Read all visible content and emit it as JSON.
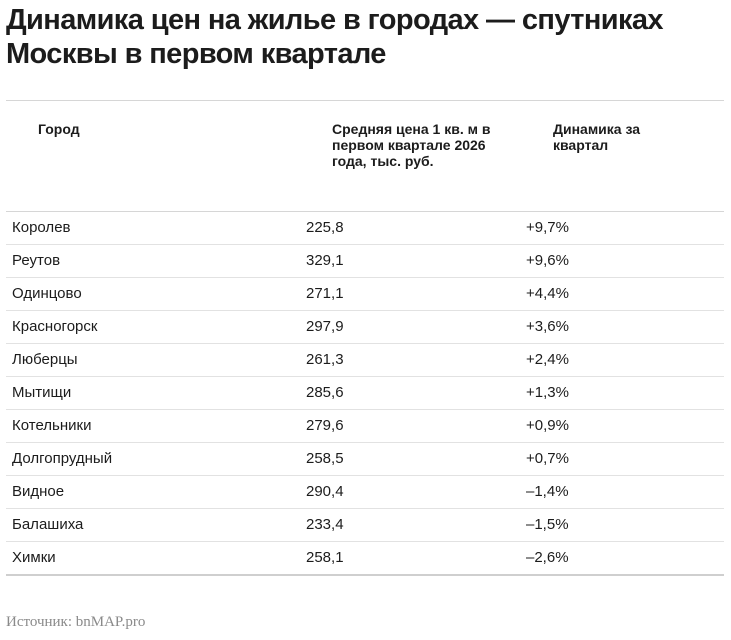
{
  "title": "Динамика цен на жилье в городах — спутниках Москвы в первом квартале",
  "table": {
    "headers": [
      "Город",
      "Средняя цена 1 кв. м в первом квартале 2026 года, тыс. руб.",
      "Динамика за квартал"
    ],
    "rows": [
      [
        "Королев",
        "225,8",
        "+9,7%"
      ],
      [
        "Реутов",
        "329,1",
        "+9,6%"
      ],
      [
        "Одинцово",
        "271,1",
        "+4,4%"
      ],
      [
        "Красногорск",
        "297,9",
        "+3,6%"
      ],
      [
        "Люберцы",
        "261,3",
        "+2,4%"
      ],
      [
        "Мытищи",
        "285,6",
        "+1,3%"
      ],
      [
        "Котельники",
        "279,6",
        "+0,9%"
      ],
      [
        "Долгопрудный",
        "258,5",
        "+0,7%"
      ],
      [
        "Видное",
        "290,4",
        "–1,4%"
      ],
      [
        "Балашиха",
        "233,4",
        "–1,5%"
      ],
      [
        "Химки",
        "258,1",
        "–2,6%"
      ]
    ]
  },
  "source": "Источник: bnMAP.pro"
}
